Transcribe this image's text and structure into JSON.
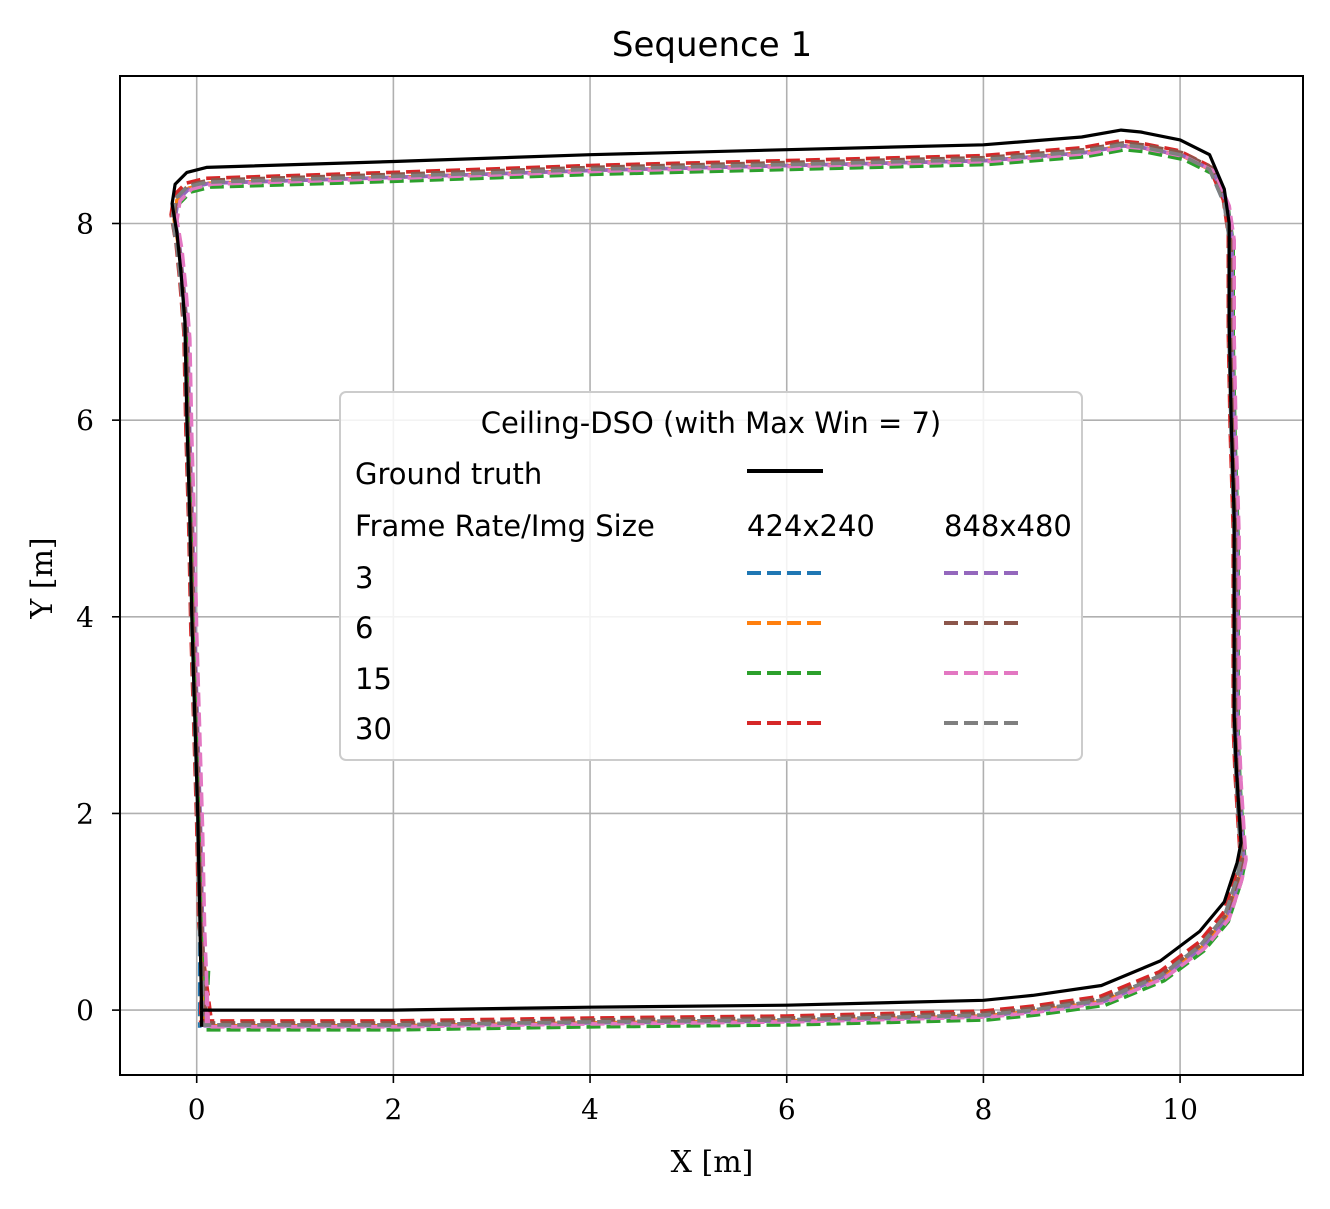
{
  "chart_data": {
    "type": "line",
    "title": "Sequence 1",
    "xlabel": "X [m]",
    "ylabel": "Y [m]",
    "xlim": [
      -0.78,
      11.25
    ],
    "ylim": [
      -0.66,
      9.5
    ],
    "xticks": [
      0,
      2,
      4,
      6,
      8,
      10
    ],
    "yticks": [
      0,
      2,
      4,
      6,
      8
    ],
    "grid": true,
    "legend": {
      "placement": "center",
      "title": "Ceiling-DSO (with Max Win = 7)",
      "ground_truth_label": "Ground truth",
      "header_label": "Frame Rate/Img Size",
      "columns": [
        "424x240",
        "848x480"
      ],
      "rows": [
        "3",
        "6",
        "15",
        "30"
      ]
    },
    "ground_truth": {
      "name": "Ground truth",
      "color": "#000000",
      "x": [
        0.05,
        0.05,
        0.05,
        2.5,
        4.0,
        6.0,
        8.0,
        9.0,
        9.6,
        10.0,
        10.3,
        10.4,
        10.45,
        10.5,
        10.55,
        10.58,
        10.6,
        10.58,
        10.45,
        10.2,
        9.8,
        9.4,
        9.0,
        8.0,
        6.0,
        4.0,
        2.0,
        0.05,
        0.03,
        0.01,
        -0.02,
        -0.05,
        -0.07,
        -0.1,
        -0.12,
        -0.16,
        -0.2,
        -0.25,
        -0.22,
        -0.1,
        0.1,
        2.0,
        4.0,
        6.0,
        8.0,
        9.0,
        9.4,
        9.6,
        10.0,
        10.3,
        10.45,
        10.5,
        10.5,
        10.52,
        10.55,
        10.55,
        10.55,
        10.57,
        10.6,
        10.62,
        10.58,
        10.45,
        10.2,
        9.8,
        9.2,
        8.5,
        8.0,
        6.0,
        4.0,
        2.5,
        0.05,
        0.05
      ],
      "y": [
        0.0,
        0.0,
        -0.02,
        -0.02,
        0.03,
        0.05,
        0.1,
        0.15,
        0.3,
        0.5,
        0.8,
        1.0,
        1.2,
        1.5,
        1.7,
        1.9,
        2.0,
        1.5,
        1.0,
        0.8,
        0.5,
        0.3,
        0.15,
        0.1,
        0.05,
        0.03,
        -0.02,
        0.0,
        1.0,
        2.0,
        3.0,
        4.0,
        5.0,
        6.0,
        7.0,
        7.5,
        7.9,
        8.2,
        8.4,
        8.52,
        8.57,
        8.63,
        8.7,
        8.75,
        8.8,
        8.88,
        8.95,
        8.93,
        8.85,
        8.7,
        8.35,
        8.0,
        7.0,
        6.0,
        5.0,
        4.0,
        3.0,
        2.5,
        2.0,
        1.7,
        1.5,
        1.1,
        0.8,
        0.5,
        0.25,
        0.15,
        0.1,
        0.05,
        0.03,
        -0.02,
        -0.02,
        0.0
      ]
    },
    "series": [
      {
        "name": "3",
        "size": "424x240",
        "color": "#1f77b4",
        "dx": 0.0,
        "dy": -0.15,
        "start_x": 0.05,
        "start_y": 0.3,
        "end_x": 0.03,
        "end_y": -0.18
      },
      {
        "name": "6",
        "size": "424x240",
        "color": "#ff7f0e",
        "dx": 0.02,
        "dy": -0.16,
        "start_x": 0.1,
        "start_y": 0.4,
        "end_x": 0.05,
        "end_y": -0.17
      },
      {
        "name": "15",
        "size": "424x240",
        "color": "#2ca02c",
        "dx": 0.04,
        "dy": -0.2,
        "start_x": 0.12,
        "start_y": 0.4,
        "end_x": 0.1,
        "end_y": -0.2
      },
      {
        "name": "30",
        "size": "424x240",
        "color": "#d62728",
        "dx": -0.01,
        "dy": -0.11,
        "start_x": 0.05,
        "start_y": 0.3,
        "end_x": 0.15,
        "end_y": -0.12
      },
      {
        "name": "3",
        "size": "848x480",
        "color": "#9467bd",
        "dx": 0.03,
        "dy": -0.16,
        "start_x": 0.08,
        "start_y": 0.3,
        "end_x": 0.08,
        "end_y": -0.17
      },
      {
        "name": "6",
        "size": "848x480",
        "color": "#8c564b",
        "dx": 0.02,
        "dy": -0.13,
        "start_x": 0.08,
        "start_y": 0.3,
        "end_x": 0.1,
        "end_y": -0.14
      },
      {
        "name": "15",
        "size": "848x480",
        "color": "#e377c2",
        "dx": 0.05,
        "dy": -0.17,
        "start_x": 0.1,
        "start_y": 0.4,
        "end_x": 0.12,
        "end_y": -0.18
      },
      {
        "name": "30",
        "size": "848x480",
        "color": "#7f7f7f",
        "dx": 0.0,
        "dy": -0.15,
        "start_x": 0.06,
        "start_y": 0.3,
        "end_x": 0.06,
        "end_y": -0.16
      }
    ],
    "loop_path": {
      "x": [
        0.05,
        2.0,
        4.0,
        6.0,
        8.0,
        8.5,
        9.2,
        9.8,
        10.2,
        10.45,
        10.58,
        10.62,
        10.6,
        10.57,
        10.55,
        10.55,
        10.55,
        10.52,
        10.5,
        10.5,
        10.45,
        10.3,
        10.0,
        9.6,
        9.4,
        9.0,
        8.0,
        6.0,
        4.0,
        2.0,
        0.1,
        -0.1,
        -0.22,
        -0.25,
        -0.2,
        -0.16,
        -0.12,
        -0.1,
        -0.07,
        -0.05,
        -0.02,
        0.01,
        0.03
      ],
      "y": [
        0.0,
        0.0,
        0.03,
        0.05,
        0.1,
        0.15,
        0.25,
        0.5,
        0.8,
        1.1,
        1.5,
        1.7,
        2.0,
        2.5,
        3.0,
        4.0,
        5.0,
        6.0,
        7.0,
        8.0,
        8.35,
        8.7,
        8.85,
        8.93,
        8.95,
        8.88,
        8.8,
        8.75,
        8.7,
        8.63,
        8.57,
        8.52,
        8.4,
        8.2,
        7.9,
        7.5,
        7.0,
        6.0,
        5.0,
        4.0,
        3.0,
        2.0,
        1.0
      ]
    }
  }
}
